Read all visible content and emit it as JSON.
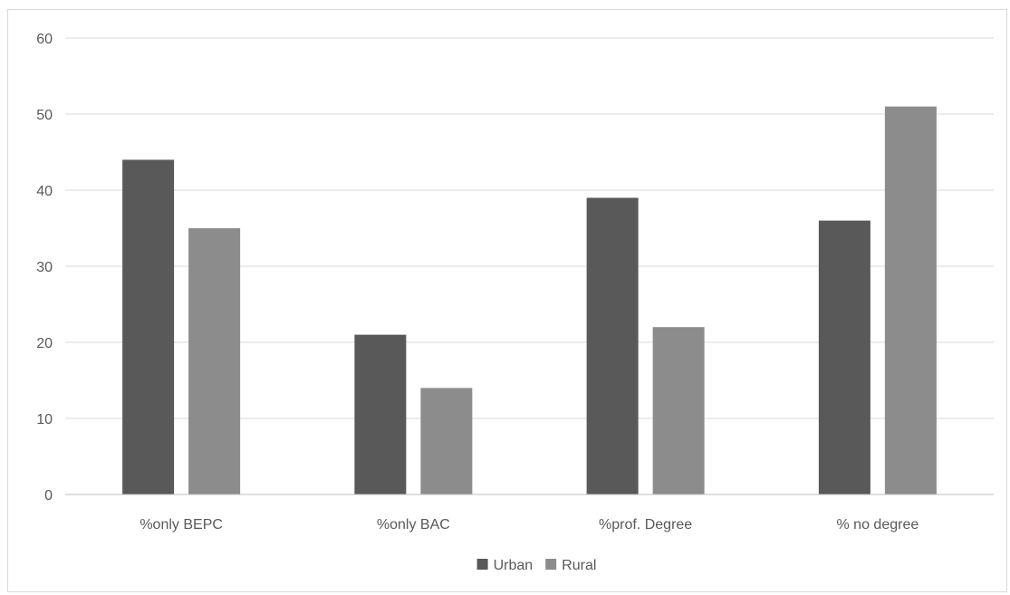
{
  "chart_data": {
    "type": "bar",
    "categories": [
      "%only BEPC",
      "%only BAC",
      "%prof. Degree",
      "% no degree"
    ],
    "series": [
      {
        "name": "Urban",
        "values": [
          44,
          21,
          39,
          36
        ],
        "color": "#595959"
      },
      {
        "name": "Rural",
        "values": [
          35,
          14,
          22,
          51
        ],
        "color": "#8c8c8c"
      }
    ],
    "title": "",
    "xlabel": "",
    "ylabel": "",
    "ylim": [
      0,
      60
    ],
    "yticks": [
      0,
      10,
      20,
      30,
      40,
      50,
      60
    ],
    "grid": true,
    "legend": "bottom-center",
    "gridline_color": "#d9d9d9",
    "axis_color": "#bfbfbf"
  }
}
